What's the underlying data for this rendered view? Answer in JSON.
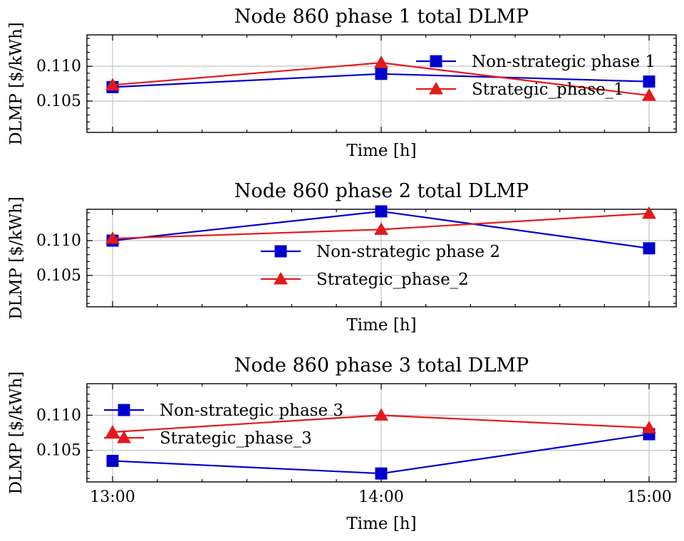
{
  "chart_data": [
    {
      "type": "line",
      "title": "Node 860 phase 1 total DLMP",
      "xlabel": "Time [h]",
      "ylabel": "DLMP [$/kWh]",
      "categories": [
        "13:00",
        "14:00",
        "15:00"
      ],
      "ylim": [
        0.1005,
        0.1145
      ],
      "yticks": [
        0.105,
        0.11
      ],
      "ytick_labels": [
        "0.105",
        "0.110"
      ],
      "xtick_labels_shown": false,
      "grid": true,
      "legend": "top-right",
      "series": [
        {
          "name": "Non-strategic phase 1",
          "marker": "square",
          "color": "#0000cc",
          "values": [
            0.107,
            0.1089,
            0.1078
          ]
        },
        {
          "name": "Strategic_phase_1",
          "marker": "triangle",
          "color": "#e31a1c",
          "values": [
            0.1073,
            0.1105,
            0.1058
          ]
        }
      ]
    },
    {
      "type": "line",
      "title": "Node 860 phase 2 total DLMP",
      "xlabel": "Time [h]",
      "ylabel": "DLMP [$/kWh]",
      "categories": [
        "13:00",
        "14:00",
        "15:00"
      ],
      "ylim": [
        0.1005,
        0.1145
      ],
      "yticks": [
        0.105,
        0.11
      ],
      "ytick_labels": [
        "0.105",
        "0.110"
      ],
      "xtick_labels_shown": false,
      "grid": true,
      "legend": "center",
      "series": [
        {
          "name": "Non-strategic phase 2",
          "marker": "square",
          "color": "#0000cc",
          "values": [
            0.11,
            0.1142,
            0.1089
          ]
        },
        {
          "name": "Strategic_phase_2",
          "marker": "triangle",
          "color": "#e31a1c",
          "values": [
            0.1103,
            0.1116,
            0.1139
          ]
        }
      ]
    },
    {
      "type": "line",
      "title": "Node 860 phase 3 total DLMP",
      "xlabel": "Time [h]",
      "ylabel": "DLMP [$/kWh]",
      "categories": [
        "13:00",
        "14:00",
        "15:00"
      ],
      "ylim": [
        0.1005,
        0.1145
      ],
      "yticks": [
        0.105,
        0.11
      ],
      "ytick_labels": [
        "0.105",
        "0.110"
      ],
      "xtick_labels_shown": true,
      "grid": true,
      "legend": "top-left",
      "series": [
        {
          "name": "Non-strategic phase 3",
          "marker": "square",
          "color": "#0000cc",
          "values": [
            0.1035,
            0.1017,
            0.1073
          ]
        },
        {
          "name": "Strategic_phase_3",
          "marker": "triangle",
          "color": "#e31a1c",
          "values": [
            0.1076,
            0.11,
            0.1082
          ]
        }
      ]
    }
  ]
}
